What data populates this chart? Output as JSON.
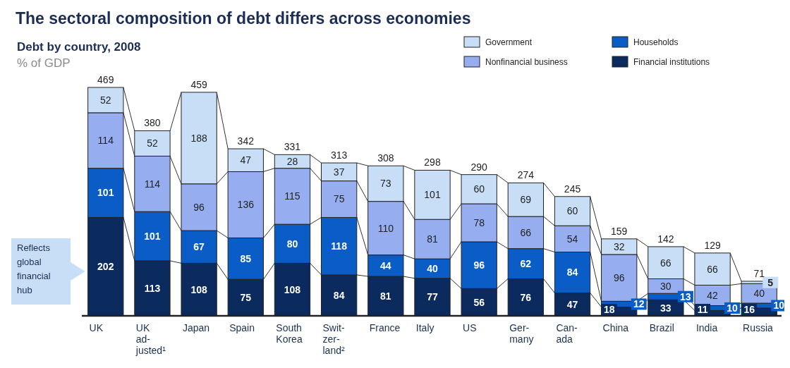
{
  "chart_data": {
    "type": "bar",
    "title": "The sectoral composition of debt differs across economies",
    "subtitle": "Debt by country, 2008",
    "ylabel": "% of GDP",
    "categories": [
      "UK",
      "UK ad-justed¹",
      "Japan",
      "Spain",
      "South Korea",
      "Swit-zer-land²",
      "France",
      "Italy",
      "US",
      "Ger-many",
      "Can-ada",
      "China",
      "Brazil",
      "India",
      "Russia"
    ],
    "stacked": true,
    "data_labels": true,
    "legend": "top right",
    "series": [
      {
        "name": "Financial institutions",
        "color": "#0b2a5e",
        "values": [
          202,
          113,
          108,
          75,
          108,
          84,
          81,
          77,
          56,
          76,
          47,
          18,
          33,
          11,
          16
        ]
      },
      {
        "name": "Households",
        "color": "#0a5cc6",
        "values": [
          101,
          101,
          67,
          85,
          80,
          118,
          44,
          40,
          96,
          62,
          84,
          12,
          13,
          10,
          10
        ]
      },
      {
        "name": "Nonfinancial business",
        "color": "#96adf0",
        "values": [
          114,
          114,
          96,
          136,
          115,
          75,
          110,
          81,
          78,
          66,
          54,
          96,
          30,
          42,
          40
        ]
      },
      {
        "name": "Government",
        "color": "#c8def6",
        "values": [
          52,
          52,
          188,
          47,
          28,
          37,
          73,
          101,
          60,
          69,
          60,
          32,
          66,
          66,
          5
        ]
      }
    ],
    "totals": [
      "469",
      "380",
      "459",
      "342",
      "331",
      "313",
      "308",
      "298",
      "290",
      "274",
      "245",
      "159",
      "142",
      "129",
      "71"
    ],
    "annotations": [
      "Reflects global financial hub"
    ]
  }
}
